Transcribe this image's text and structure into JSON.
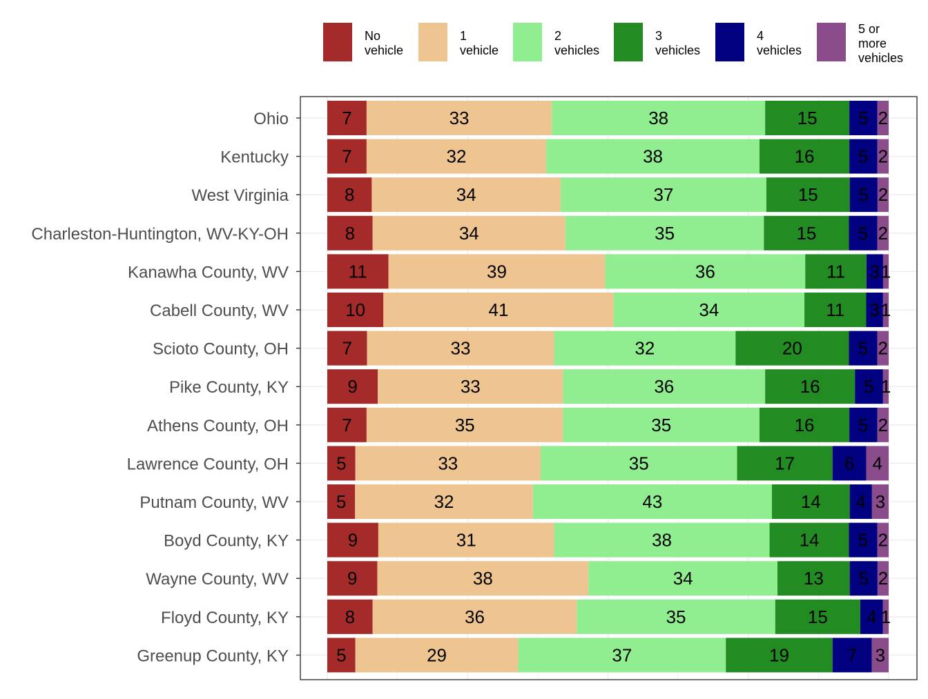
{
  "chart_data": {
    "type": "bar",
    "orientation": "horizontal",
    "stacked": true,
    "percent_stacked": true,
    "title": "",
    "xlabel": "",
    "ylabel": "",
    "grid": true,
    "legend_position": "top",
    "categories": [
      "Ohio",
      "Kentucky",
      "West Virginia",
      "Charleston-Huntington, WV-KY-OH",
      "Kanawha County, WV",
      "Cabell County, WV",
      "Scioto County, OH",
      "Pike County, KY",
      "Athens County, OH",
      "Lawrence County, OH",
      "Putnam County, WV",
      "Boyd County, KY",
      "Wayne County, WV",
      "Floyd County, KY",
      "Greenup County, KY"
    ],
    "series": [
      {
        "name": "No vehicle",
        "legend_lines": [
          "No",
          "vehicle"
        ],
        "color": "#A52A2A",
        "values": [
          7,
          7,
          8,
          8,
          11,
          10,
          7,
          9,
          7,
          5,
          5,
          9,
          9,
          8,
          5
        ]
      },
      {
        "name": "1 vehicle",
        "legend_lines": [
          "1",
          "vehicle"
        ],
        "color": "#EEC591",
        "values": [
          33,
          32,
          34,
          34,
          39,
          41,
          33,
          33,
          35,
          33,
          32,
          31,
          38,
          36,
          29
        ]
      },
      {
        "name": "2 vehicles",
        "legend_lines": [
          "2",
          "vehicles"
        ],
        "color": "#90EE90",
        "values": [
          38,
          38,
          37,
          35,
          36,
          34,
          32,
          36,
          35,
          35,
          43,
          38,
          34,
          35,
          37
        ]
      },
      {
        "name": "3 vehicles",
        "legend_lines": [
          "3",
          "vehicles"
        ],
        "color": "#228B22",
        "values": [
          15,
          16,
          15,
          15,
          11,
          11,
          20,
          16,
          16,
          17,
          14,
          14,
          13,
          15,
          19
        ]
      },
      {
        "name": "4 vehicles",
        "legend_lines": [
          "4",
          "vehicles"
        ],
        "color": "#000080",
        "values": [
          5,
          5,
          5,
          5,
          3,
          3,
          5,
          5,
          5,
          6,
          4,
          5,
          5,
          4,
          7
        ]
      },
      {
        "name": "5 or more vehicles",
        "legend_lines": [
          "5 or",
          "more",
          "vehicles"
        ],
        "color": "#8B4C8B",
        "values": [
          2,
          2,
          2,
          2,
          1,
          1,
          2,
          1,
          2,
          4,
          3,
          2,
          2,
          1,
          3
        ]
      }
    ]
  }
}
